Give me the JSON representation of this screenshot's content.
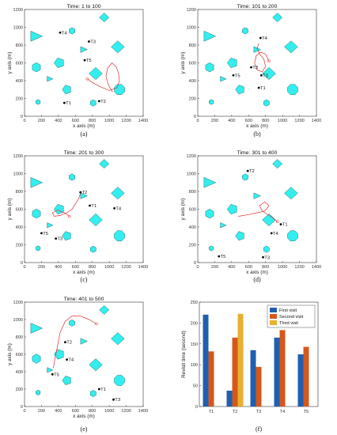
{
  "colors": {
    "obstacle_fill": "#33eeee",
    "obstacle_stroke": "#2a6f74",
    "path": "#e03030",
    "target": "#000000",
    "first_visit": "#1f5fb0",
    "second_visit": "#d4581c",
    "third_visit": "#e8b030"
  },
  "obstacles": [
    {
      "type": "triangle",
      "center": [
        140,
        900
      ],
      "size": 120
    },
    {
      "type": "hexagon",
      "center": [
        560,
        960
      ],
      "size": 70
    },
    {
      "type": "diamond",
      "center": [
        940,
        1110
      ],
      "size": 95
    },
    {
      "type": "hexagon",
      "center": [
        140,
        550
      ],
      "size": 100
    },
    {
      "type": "pentagon",
      "center": [
        410,
        600
      ],
      "size": 110
    },
    {
      "type": "triangle",
      "center": [
        700,
        750
      ],
      "size": 70
    },
    {
      "type": "diamond",
      "center": [
        1100,
        780
      ],
      "size": 130
    },
    {
      "type": "triangle",
      "center": [
        300,
        420
      ],
      "size": 60
    },
    {
      "type": "pentagon",
      "center": [
        500,
        300
      ],
      "size": 100
    },
    {
      "type": "diamond",
      "center": [
        840,
        480
      ],
      "size": 130
    },
    {
      "type": "octagon",
      "center": [
        1120,
        300
      ],
      "size": 120
    },
    {
      "type": "hexagon",
      "center": [
        160,
        160
      ],
      "size": 55
    },
    {
      "type": "hexagon",
      "center": [
        810,
        150
      ],
      "size": 70
    }
  ],
  "chart_data": [
    {
      "type": "scatter",
      "caption": "(a)",
      "title": "Time: 1 to 100",
      "xlabel": "x axis (m)",
      "ylabel": "y axis (m)",
      "xlim": [
        0,
        1400
      ],
      "ylim": [
        0,
        1200
      ],
      "xticks": [
        "0",
        "200",
        "400",
        "600",
        "800",
        "1000",
        "1200",
        "1400"
      ],
      "yticks": [
        "0",
        "200",
        "400",
        "600",
        "800",
        "1000",
        "1200"
      ],
      "targets": [
        {
          "name": "T4",
          "x": 420,
          "y": 940
        },
        {
          "name": "T3",
          "x": 760,
          "y": 840
        },
        {
          "name": "T5",
          "x": 710,
          "y": 630
        },
        {
          "name": "T1",
          "x": 470,
          "y": 150
        },
        {
          "name": "T2",
          "x": 880,
          "y": 170
        }
      ],
      "path": [
        [
          1040,
          270
        ],
        [
          990,
          350
        ],
        [
          960,
          450
        ],
        [
          980,
          540
        ],
        [
          1030,
          600
        ],
        [
          1080,
          560
        ],
        [
          1110,
          480
        ],
        [
          1120,
          400
        ],
        [
          1090,
          320
        ],
        [
          1000,
          290
        ],
        [
          900,
          330
        ],
        [
          800,
          380
        ],
        [
          740,
          420
        ]
      ]
    },
    {
      "type": "scatter",
      "caption": "(b)",
      "title": "Time: 101 to 200",
      "xlabel": "x axis (m)",
      "ylabel": "y axis (m)",
      "xlim": [
        0,
        1400
      ],
      "ylim": [
        0,
        1200
      ],
      "xticks": [
        "0",
        "200",
        "400",
        "600",
        "800",
        "1000",
        "1200",
        "1400"
      ],
      "yticks": [
        "0",
        "200",
        "400",
        "600",
        "800",
        "1000",
        "1200"
      ],
      "targets": [
        {
          "name": "T4",
          "x": 740,
          "y": 880
        },
        {
          "name": "T3",
          "x": 630,
          "y": 550
        },
        {
          "name": "T2",
          "x": 750,
          "y": 460
        },
        {
          "name": "T5",
          "x": 420,
          "y": 460
        },
        {
          "name": "T1",
          "x": 720,
          "y": 320
        }
      ],
      "path": [
        [
          720,
          820
        ],
        [
          700,
          760
        ],
        [
          730,
          700
        ],
        [
          780,
          640
        ],
        [
          800,
          560
        ],
        [
          760,
          500
        ],
        [
          700,
          520
        ],
        [
          670,
          600
        ],
        [
          690,
          680
        ],
        [
          740,
          720
        ],
        [
          800,
          700
        ],
        [
          840,
          620
        ]
      ]
    },
    {
      "type": "scatter",
      "caption": "(c)",
      "title": "Time: 201 to 300",
      "xlabel": "x axis (m)",
      "ylabel": "y axis (m)",
      "xlim": [
        0,
        1400
      ],
      "ylim": [
        0,
        1200
      ],
      "xticks": [
        "0",
        "200",
        "400",
        "600",
        "800",
        "1000",
        "1200",
        "1400"
      ],
      "yticks": [
        "0",
        "200",
        "400",
        "600",
        "800",
        "1000",
        "1200"
      ],
      "targets": [
        {
          "name": "T2",
          "x": 660,
          "y": 790
        },
        {
          "name": "T1",
          "x": 770,
          "y": 640
        },
        {
          "name": "T4",
          "x": 1060,
          "y": 610
        },
        {
          "name": "T5",
          "x": 200,
          "y": 330
        },
        {
          "name": "T3",
          "x": 370,
          "y": 270
        }
      ],
      "path": [
        [
          660,
          780
        ],
        [
          640,
          720
        ],
        [
          600,
          660
        ],
        [
          560,
          600
        ],
        [
          500,
          560
        ],
        [
          420,
          530
        ],
        [
          350,
          520
        ],
        [
          330,
          560
        ],
        [
          390,
          590
        ],
        [
          470,
          560
        ],
        [
          530,
          520
        ]
      ]
    },
    {
      "type": "scatter",
      "caption": "(d)",
      "title": "Time: 301 to 400",
      "xlabel": "x axis (m)",
      "ylabel": "y axis (m)",
      "xlim": [
        0,
        1400
      ],
      "ylim": [
        0,
        1200
      ],
      "xticks": [
        "0",
        "200",
        "400",
        "600",
        "800",
        "1000",
        "1200",
        "1400"
      ],
      "yticks": [
        "0",
        "200",
        "400",
        "600",
        "800",
        "1000",
        "1200"
      ],
      "targets": [
        {
          "name": "T2",
          "x": 590,
          "y": 1030
        },
        {
          "name": "T1",
          "x": 980,
          "y": 430
        },
        {
          "name": "T4",
          "x": 870,
          "y": 330
        },
        {
          "name": "T5",
          "x": 250,
          "y": 70
        },
        {
          "name": "T3",
          "x": 770,
          "y": 60
        }
      ],
      "path": [
        [
          480,
          520
        ],
        [
          600,
          540
        ],
        [
          700,
          560
        ],
        [
          790,
          580
        ],
        [
          840,
          640
        ],
        [
          790,
          680
        ],
        [
          730,
          640
        ],
        [
          760,
          580
        ],
        [
          860,
          520
        ],
        [
          940,
          460
        ]
      ]
    },
    {
      "type": "scatter",
      "caption": "(e)",
      "title": "Time: 401 to 500",
      "xlabel": "x axis (m)",
      "ylabel": "y axis (m)",
      "xlim": [
        0,
        1400
      ],
      "ylim": [
        0,
        1200
      ],
      "xticks": [
        "0",
        "200",
        "400",
        "600",
        "800",
        "1000",
        "1200",
        "1400"
      ],
      "yticks": [
        "0",
        "200",
        "400",
        "600",
        "800",
        "1000",
        "1200"
      ],
      "targets": [
        {
          "name": "T2",
          "x": 480,
          "y": 740
        },
        {
          "name": "T4",
          "x": 500,
          "y": 540
        },
        {
          "name": "T5",
          "x": 330,
          "y": 370
        },
        {
          "name": "T1",
          "x": 880,
          "y": 200
        },
        {
          "name": "T3",
          "x": 1050,
          "y": 80
        }
      ],
      "path": [
        [
          340,
          440
        ],
        [
          360,
          560
        ],
        [
          390,
          700
        ],
        [
          420,
          850
        ],
        [
          480,
          980
        ],
        [
          560,
          1040
        ],
        [
          660,
          1040
        ],
        [
          760,
          1000
        ],
        [
          850,
          950
        ]
      ]
    },
    {
      "type": "bar",
      "caption": "(f)",
      "xlabel": "",
      "ylabel": "Revisit time (second)",
      "categories": [
        "T1",
        "T2",
        "T3",
        "T4",
        "T5"
      ],
      "ylim": [
        0,
        250
      ],
      "yticks": [
        "0",
        "50",
        "100",
        "150",
        "200",
        "250"
      ],
      "legend_position": "top-right",
      "series": [
        {
          "name": "First visit",
          "values": [
            220,
            38,
            135,
            165,
            125
          ]
        },
        {
          "name": "Second visit",
          "values": [
            132,
            165,
            95,
            183,
            143
          ]
        },
        {
          "name": "Third visit",
          "values": [
            0,
            222,
            0,
            0,
            0
          ]
        }
      ]
    }
  ]
}
